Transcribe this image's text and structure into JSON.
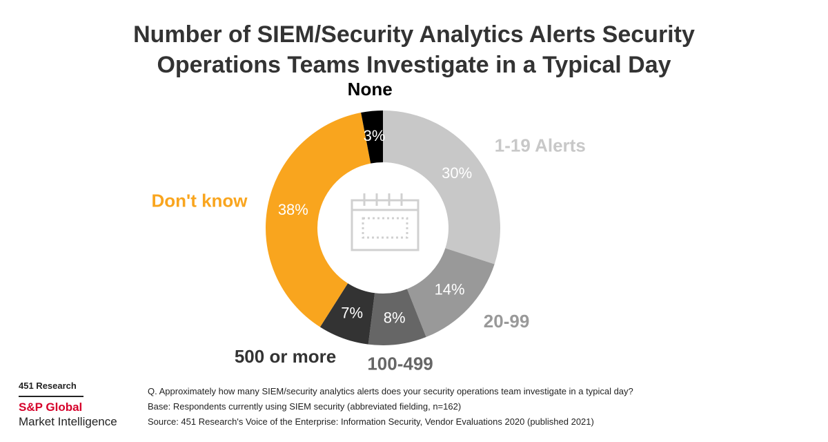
{
  "chart_data": {
    "type": "donut",
    "title": "Number of SIEM/Security Analytics Alerts Security Operations Teams Investigate in a Typical Day",
    "categories": [
      "1-19 Alerts",
      "20-99",
      "100-499",
      "500 or more",
      "Don't know",
      "None"
    ],
    "values": [
      30,
      14,
      8,
      7,
      38,
      3
    ],
    "value_labels": [
      "30%",
      "14%",
      "8%",
      "7%",
      "38%",
      "3%"
    ],
    "colors": [
      "#c8c8c8",
      "#999999",
      "#666666",
      "#333333",
      "#f9a51e",
      "#000000"
    ],
    "label_colors": [
      "#c8c8c8",
      "#999999",
      "#666666",
      "#333333",
      "#f9a51e",
      "#000000"
    ]
  },
  "footer": {
    "brand_top": "451 Research",
    "brand_name": "S&P Global",
    "brand_sub": "Market Intelligence",
    "notes": [
      "Q. Approximately how many SIEM/security analytics alerts does your security operations team investigate in a typical day?",
      "Base: Respondents currently using SIEM security (abbreviated fielding, n=162)",
      "Source: 451 Research's Voice of the Enterprise: Information Security, Vendor Evaluations 2020 (published 2021)"
    ]
  }
}
